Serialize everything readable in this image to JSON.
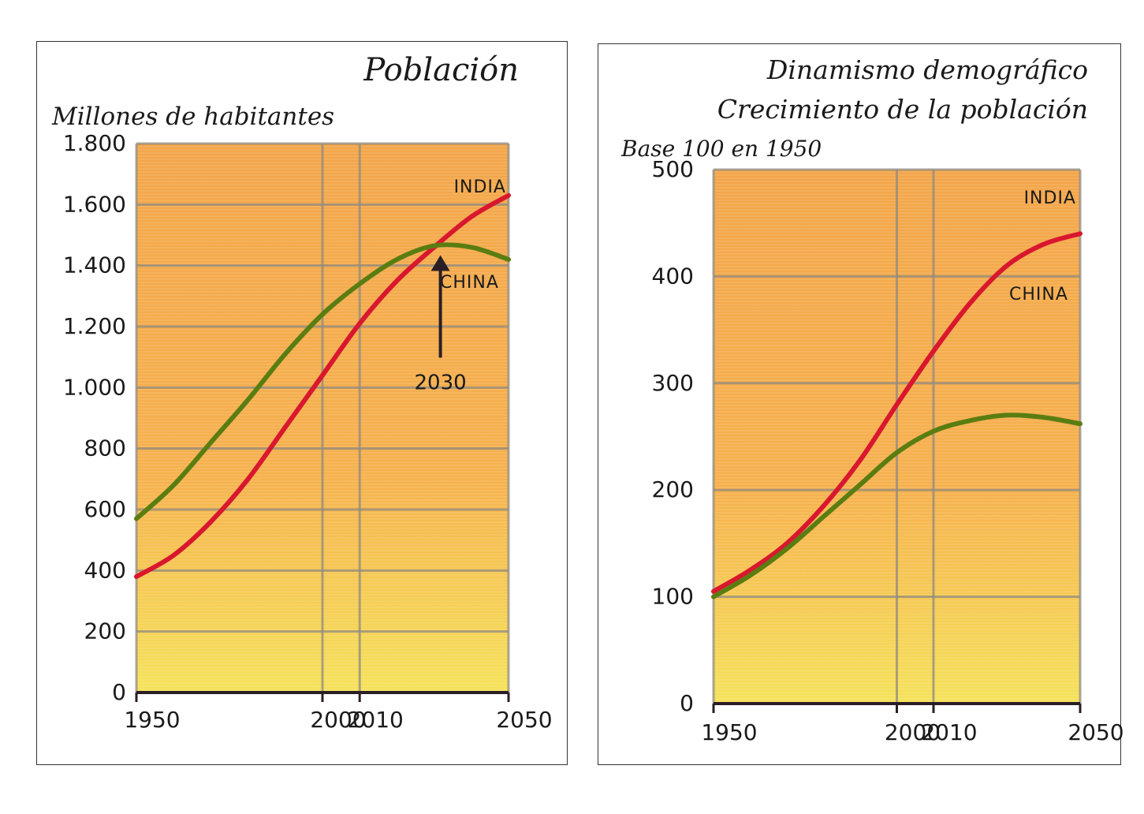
{
  "colors": {
    "india": "#d9172e",
    "china": "#5a7d12",
    "grid": "#8f8a80",
    "fill_top": "#f3a64a",
    "fill_bottom": "#f5e25a",
    "axis": "#2a1f26"
  },
  "chart_data": [
    {
      "type": "line",
      "title": "Población",
      "ylabel": "Millones de habitantes",
      "xlabel": "",
      "x_ticks": [
        1950,
        2000,
        2010,
        2050
      ],
      "x_tick_labels": [
        "1950",
        "2000",
        "2010",
        "2050"
      ],
      "y_ticks": [
        0,
        200,
        400,
        600,
        800,
        1000,
        1200,
        1400,
        1600,
        1800
      ],
      "y_tick_labels": [
        "0",
        "200",
        "400",
        "600",
        "800",
        "1.000",
        "1.200",
        "1.400",
        "1.600",
        "1.800"
      ],
      "xlim": [
        1950,
        2050
      ],
      "ylim": [
        0,
        1800
      ],
      "grid": true,
      "series": [
        {
          "name": "INDIA",
          "x": [
            1950,
            1960,
            1970,
            1980,
            1990,
            2000,
            2010,
            2020,
            2030,
            2040,
            2050
          ],
          "values": [
            380,
            450,
            560,
            700,
            870,
            1040,
            1210,
            1350,
            1460,
            1560,
            1630
          ]
        },
        {
          "name": "CHINA",
          "x": [
            1950,
            1960,
            1970,
            1980,
            1990,
            2000,
            2010,
            2020,
            2030,
            2040,
            2050
          ],
          "values": [
            570,
            680,
            820,
            960,
            1110,
            1240,
            1340,
            1420,
            1465,
            1460,
            1420
          ]
        }
      ],
      "annotations": [
        {
          "text": "2030",
          "x": 2030,
          "y": 1465,
          "type": "arrow"
        }
      ]
    },
    {
      "type": "line",
      "title": "Dinamismo demográfico",
      "subtitle": "Crecimiento de la población",
      "ylabel": "Base 100 en 1950",
      "xlabel": "",
      "x_ticks": [
        1950,
        2000,
        2010,
        2050
      ],
      "x_tick_labels": [
        "1950",
        "2000",
        "2010",
        "2050"
      ],
      "y_ticks": [
        0,
        100,
        200,
        300,
        400,
        500
      ],
      "y_tick_labels": [
        "0",
        "100",
        "200",
        "300",
        "400",
        "500"
      ],
      "xlim": [
        1950,
        2050
      ],
      "ylim": [
        0,
        500
      ],
      "grid": true,
      "series": [
        {
          "name": "INDIA",
          "x": [
            1950,
            1960,
            1970,
            1980,
            1990,
            2000,
            2010,
            2020,
            2030,
            2040,
            2050
          ],
          "values": [
            105,
            125,
            150,
            185,
            228,
            280,
            330,
            375,
            410,
            430,
            440
          ]
        },
        {
          "name": "CHINA",
          "x": [
            1950,
            1960,
            1970,
            1980,
            1990,
            2000,
            2010,
            2020,
            2030,
            2040,
            2050
          ],
          "values": [
            100,
            120,
            145,
            175,
            205,
            235,
            255,
            265,
            270,
            268,
            262
          ]
        }
      ],
      "annotations": []
    }
  ]
}
